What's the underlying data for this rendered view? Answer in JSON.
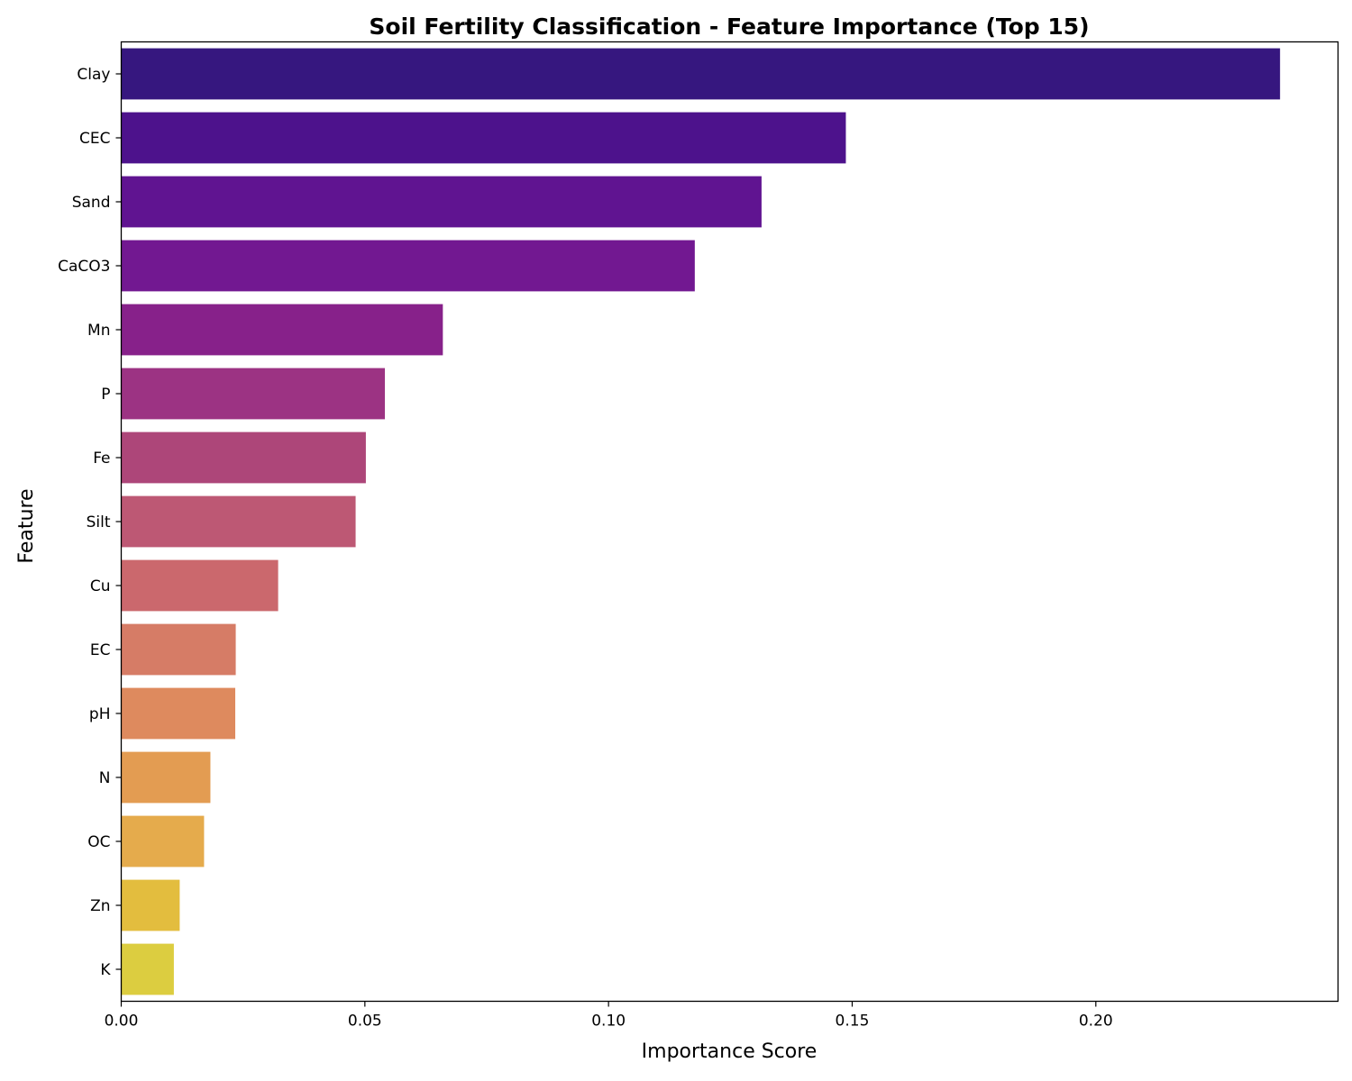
{
  "chart_data": {
    "type": "bar",
    "orientation": "horizontal",
    "title": "Soil Fertility Classification - Feature Importance (Top 15)",
    "xlabel": "Importance Score",
    "ylabel": "Feature",
    "xlim": [
      0,
      0.2497
    ],
    "xticks": [
      0.0,
      0.05,
      0.1,
      0.15,
      0.2
    ],
    "xtick_labels": [
      "0.00",
      "0.05",
      "0.10",
      "0.15",
      "0.20"
    ],
    "grid": false,
    "categories": [
      "Clay",
      "CEC",
      "Sand",
      "CaCO3",
      "Mn",
      "P",
      "Fe",
      "Silt",
      "Cu",
      "EC",
      "pH",
      "N",
      "OC",
      "Zn",
      "K"
    ],
    "values": [
      0.2378,
      0.1487,
      0.1314,
      0.1177,
      0.066,
      0.0541,
      0.0502,
      0.0481,
      0.0322,
      0.0235,
      0.0234,
      0.0183,
      0.017,
      0.012,
      0.0108
    ],
    "colors": [
      "#36177f",
      "#4d128c",
      "#601491",
      "#721891",
      "#87218a",
      "#9c3383",
      "#ad4679",
      "#bd5874",
      "#cb686d",
      "#d67c66",
      "#de8a5e",
      "#e39c52",
      "#e5ab4c",
      "#e3bd3e",
      "#dccd40"
    ]
  }
}
